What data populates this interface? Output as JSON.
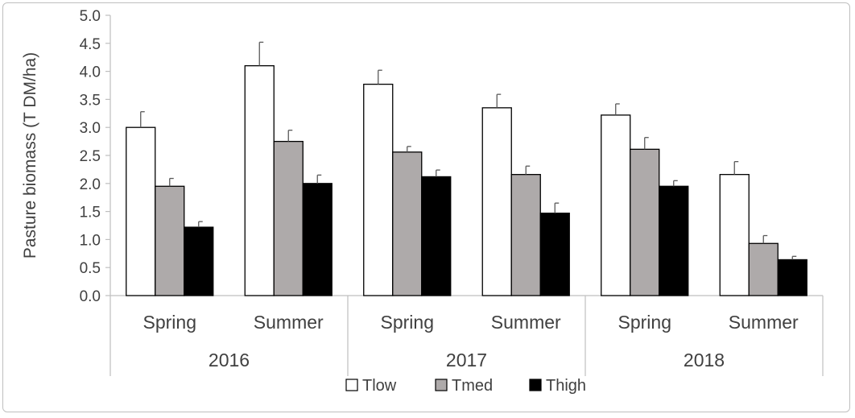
{
  "chart_data": {
    "type": "bar",
    "ylabel": "Pasture biomass (T DM/ha)",
    "xlabel": "",
    "title": "",
    "ylim": [
      0,
      5
    ],
    "ytick_step": 0.5,
    "grid": false,
    "legend_position": "bottom",
    "groups": [
      {
        "year": "2016",
        "seasons": [
          "Spring",
          "Summer"
        ]
      },
      {
        "year": "2017",
        "seasons": [
          "Spring",
          "Summer"
        ]
      },
      {
        "year": "2018",
        "seasons": [
          "Spring",
          "Summer"
        ]
      }
    ],
    "categories": [
      "Spring 2016",
      "Summer 2016",
      "Spring 2017",
      "Summer 2017",
      "Spring 2018",
      "Summer 2018"
    ],
    "series": [
      {
        "name": "Tlow",
        "color": "#ffffff",
        "values": [
          3.0,
          4.1,
          3.77,
          3.35,
          3.22,
          2.16
        ],
        "errors": [
          0.28,
          0.42,
          0.25,
          0.24,
          0.2,
          0.23
        ]
      },
      {
        "name": "Tmed",
        "color": "#aeaaaa",
        "values": [
          1.95,
          2.75,
          2.56,
          2.16,
          2.61,
          0.93
        ],
        "errors": [
          0.14,
          0.2,
          0.1,
          0.15,
          0.21,
          0.14
        ]
      },
      {
        "name": "Thigh",
        "color": "#000000",
        "values": [
          1.22,
          2.0,
          2.12,
          1.47,
          1.95,
          0.64
        ],
        "errors": [
          0.1,
          0.15,
          0.12,
          0.18,
          0.1,
          0.06
        ]
      }
    ]
  }
}
